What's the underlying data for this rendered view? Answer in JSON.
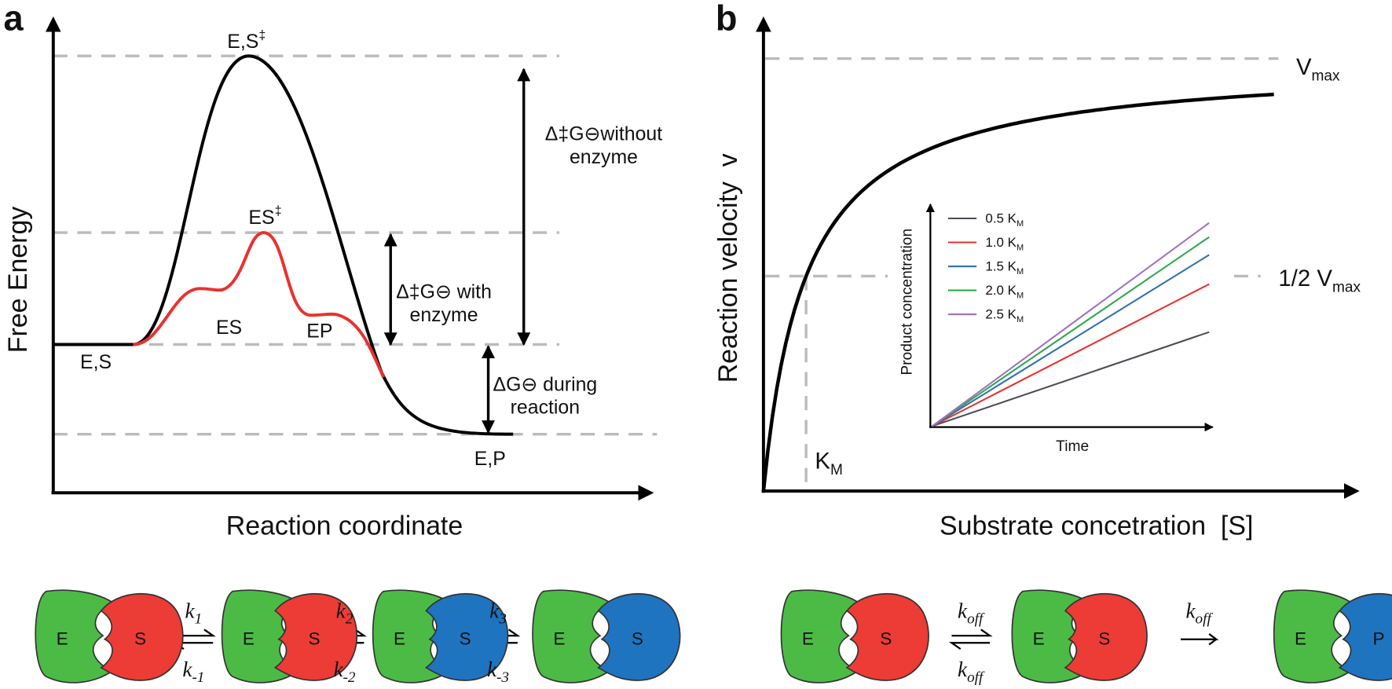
{
  "panel_a": {
    "label": "a",
    "y_axis_label": "Free Energy",
    "x_axis_label": "Reaction coordinate",
    "states": {
      "uncatalysed_transition": {
        "text": "E,S",
        "sup": "‡"
      },
      "catalysed_transition": {
        "text": "ES",
        "sup": "‡"
      },
      "es": "ES",
      "ep": "EP",
      "start": "E,S",
      "end": "E,P"
    },
    "barriers": {
      "without_enzyme": [
        "Δ‡G⊖without",
        "enzyme"
      ],
      "with_enzyme": [
        "Δ‡G⊖ with",
        "enzyme"
      ],
      "reaction": [
        "ΔG⊖ during",
        "reaction"
      ]
    }
  },
  "panel_b": {
    "label": "b",
    "y_axis_label": "Reaction velocity  v",
    "x_axis_label": "Substrate concetration  [S]",
    "vmax": {
      "text": "V",
      "sub": "max"
    },
    "half_vmax": {
      "text": "1/2 V",
      "sub": "max"
    },
    "km": {
      "text": "K",
      "sub": "M"
    },
    "inset": {
      "y_axis_label": "Product concentration",
      "x_axis_label": "Time",
      "legend": [
        {
          "text": "0.5 K",
          "sub": "M",
          "color": "#4a4a5c"
        },
        {
          "text": "1.0 K",
          "sub": "M",
          "color": "#e8322f"
        },
        {
          "text": "1.5 K",
          "sub": "M",
          "color": "#2f6fb0"
        },
        {
          "text": "2.0 K",
          "sub": "M",
          "color": "#2aa84a"
        },
        {
          "text": "2.5 K",
          "sub": "M",
          "color": "#a070c0"
        }
      ]
    }
  },
  "scheme_a": {
    "complexes": [
      {
        "enzyme": "E",
        "substrate": "S"
      },
      {
        "enzyme": "E",
        "substrate": "S"
      },
      {
        "enzyme": "E",
        "substrate": "S"
      },
      {
        "enzyme": "E",
        "substrate": "S"
      }
    ],
    "rates": [
      {
        "forward": {
          "symbol": "k",
          "index": "1"
        },
        "reverse": {
          "symbol": "k",
          "index": "-1"
        }
      },
      {
        "forward": {
          "symbol": "k",
          "index": "2"
        },
        "reverse": {
          "symbol": "k",
          "index": "-2"
        }
      },
      {
        "forward": {
          "symbol": "k",
          "index": "3"
        },
        "reverse": {
          "symbol": "k",
          "index": "-3"
        }
      }
    ]
  },
  "scheme_b": {
    "complexes": [
      {
        "enzyme": "E",
        "substrate": "S"
      },
      {
        "enzyme": "E",
        "substrate": "S"
      },
      {
        "enzyme": "E",
        "substrate": "P"
      }
    ],
    "rates": [
      {
        "forward": {
          "symbol": "k",
          "index": "off"
        },
        "reverse": {
          "symbol": "k",
          "index": "off"
        }
      },
      {
        "forward": {
          "symbol": "k",
          "index": "off"
        }
      }
    ]
  }
}
